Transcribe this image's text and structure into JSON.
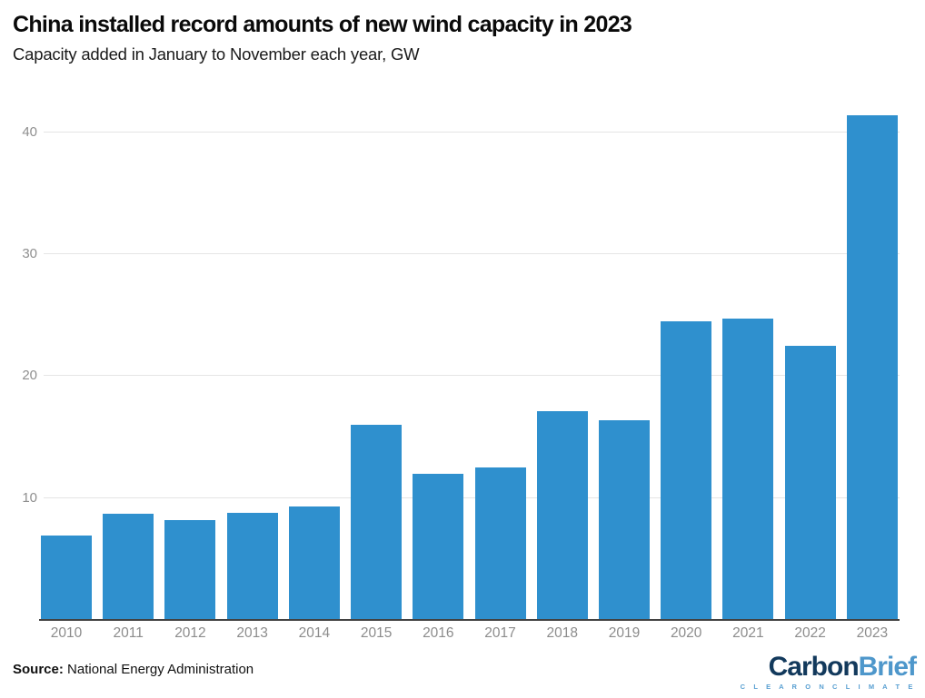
{
  "header": {
    "title": "China installed record amounts of new wind capacity in 2023",
    "subtitle": "Capacity added in January to November each year, GW"
  },
  "chart_data": {
    "type": "bar",
    "title": "China installed record amounts of new wind capacity in 2023",
    "subtitle": "Capacity added in January to November each year, GW",
    "categories": [
      "2010",
      "2011",
      "2012",
      "2013",
      "2014",
      "2015",
      "2016",
      "2017",
      "2018",
      "2019",
      "2020",
      "2021",
      "2022",
      "2023"
    ],
    "values": [
      6.9,
      8.7,
      8.2,
      8.8,
      9.3,
      16.0,
      12.0,
      12.5,
      17.1,
      16.4,
      24.5,
      24.7,
      22.5,
      41.4
    ],
    "unit": "GW",
    "xlabel": "",
    "ylabel": "",
    "ylim": [
      0,
      43.4
    ],
    "yticks": [
      10,
      20,
      30,
      40
    ],
    "grid": "horizontal",
    "legend": "none",
    "bar_color": "#2f90ce"
  },
  "colors": {
    "bar": "#2f90ce",
    "gridline": "#e5e5e5",
    "axis_line": "#424242",
    "tick_label": "#8f8f8f",
    "title": "#0a0a0a",
    "logo_dark": "#12395c",
    "logo_light": "#4e97cb",
    "logo_tagline": "#5aa0d2"
  },
  "footer": {
    "source_label": "Source:",
    "source_text": " National Energy Administration",
    "logo": {
      "part1": "Carbon",
      "part2": "Brief",
      "tagline": "C L E A R   O N   C L I M A T E"
    }
  }
}
